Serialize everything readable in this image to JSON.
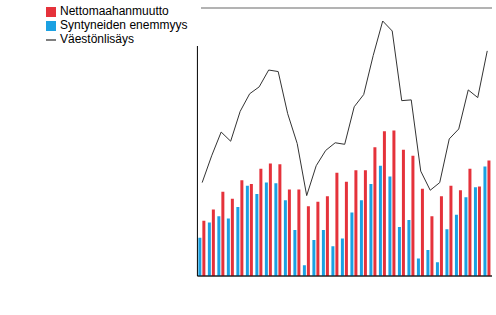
{
  "chart_data": {
    "type": "bar",
    "categories": [
      null,
      null,
      null,
      null,
      null,
      null,
      null,
      null,
      null,
      null,
      null,
      null,
      null,
      null,
      null,
      null,
      null,
      null,
      null,
      null,
      null,
      null,
      null,
      null,
      null,
      null,
      null,
      null,
      null,
      null,
      null
    ],
    "series": [
      {
        "name": "Syntyneiden enemmyys",
        "type": "bar",
        "color": "#1ba1e2",
        "values": [
          5000,
          7000,
          7800,
          7500,
          9000,
          11800,
          10700,
          12200,
          12100,
          9900,
          6000,
          1400,
          4700,
          6000,
          3900,
          4900,
          8300,
          9900,
          12000,
          14400,
          13000,
          6400,
          7300,
          2300,
          3400,
          1800,
          6100,
          8000,
          10300,
          11600,
          14300
        ]
      },
      {
        "name": "Nettomaahanmuutto",
        "type": "bar",
        "color": "#e5323b",
        "values": [
          7200,
          8700,
          11000,
          10100,
          12500,
          12000,
          14000,
          14700,
          14600,
          11300,
          11300,
          9100,
          9700,
          10400,
          13500,
          12300,
          13800,
          13800,
          16800,
          18900,
          19000,
          16500,
          15700,
          11400,
          7800,
          10400,
          11800,
          11200,
          14000,
          11700,
          15100
        ]
      },
      {
        "name": "Väestönlisäys",
        "type": "line",
        "color": "#333333",
        "values": [
          12200,
          15700,
          18800,
          17600,
          21500,
          23800,
          24700,
          26900,
          26700,
          21200,
          17300,
          10500,
          14400,
          16400,
          17400,
          17200,
          22100,
          23700,
          28800,
          33300,
          32000,
          22900,
          23000,
          13700,
          11200,
          12200,
          17900,
          19200,
          24300,
          23300,
          29400
        ]
      }
    ],
    "ylim": [
      0,
      35000
    ],
    "yticks": [
      0,
      5000,
      10000,
      15000,
      20000,
      25000,
      30000,
      35000
    ],
    "grid": true,
    "legend": "top-left",
    "tick_labels": false
  }
}
